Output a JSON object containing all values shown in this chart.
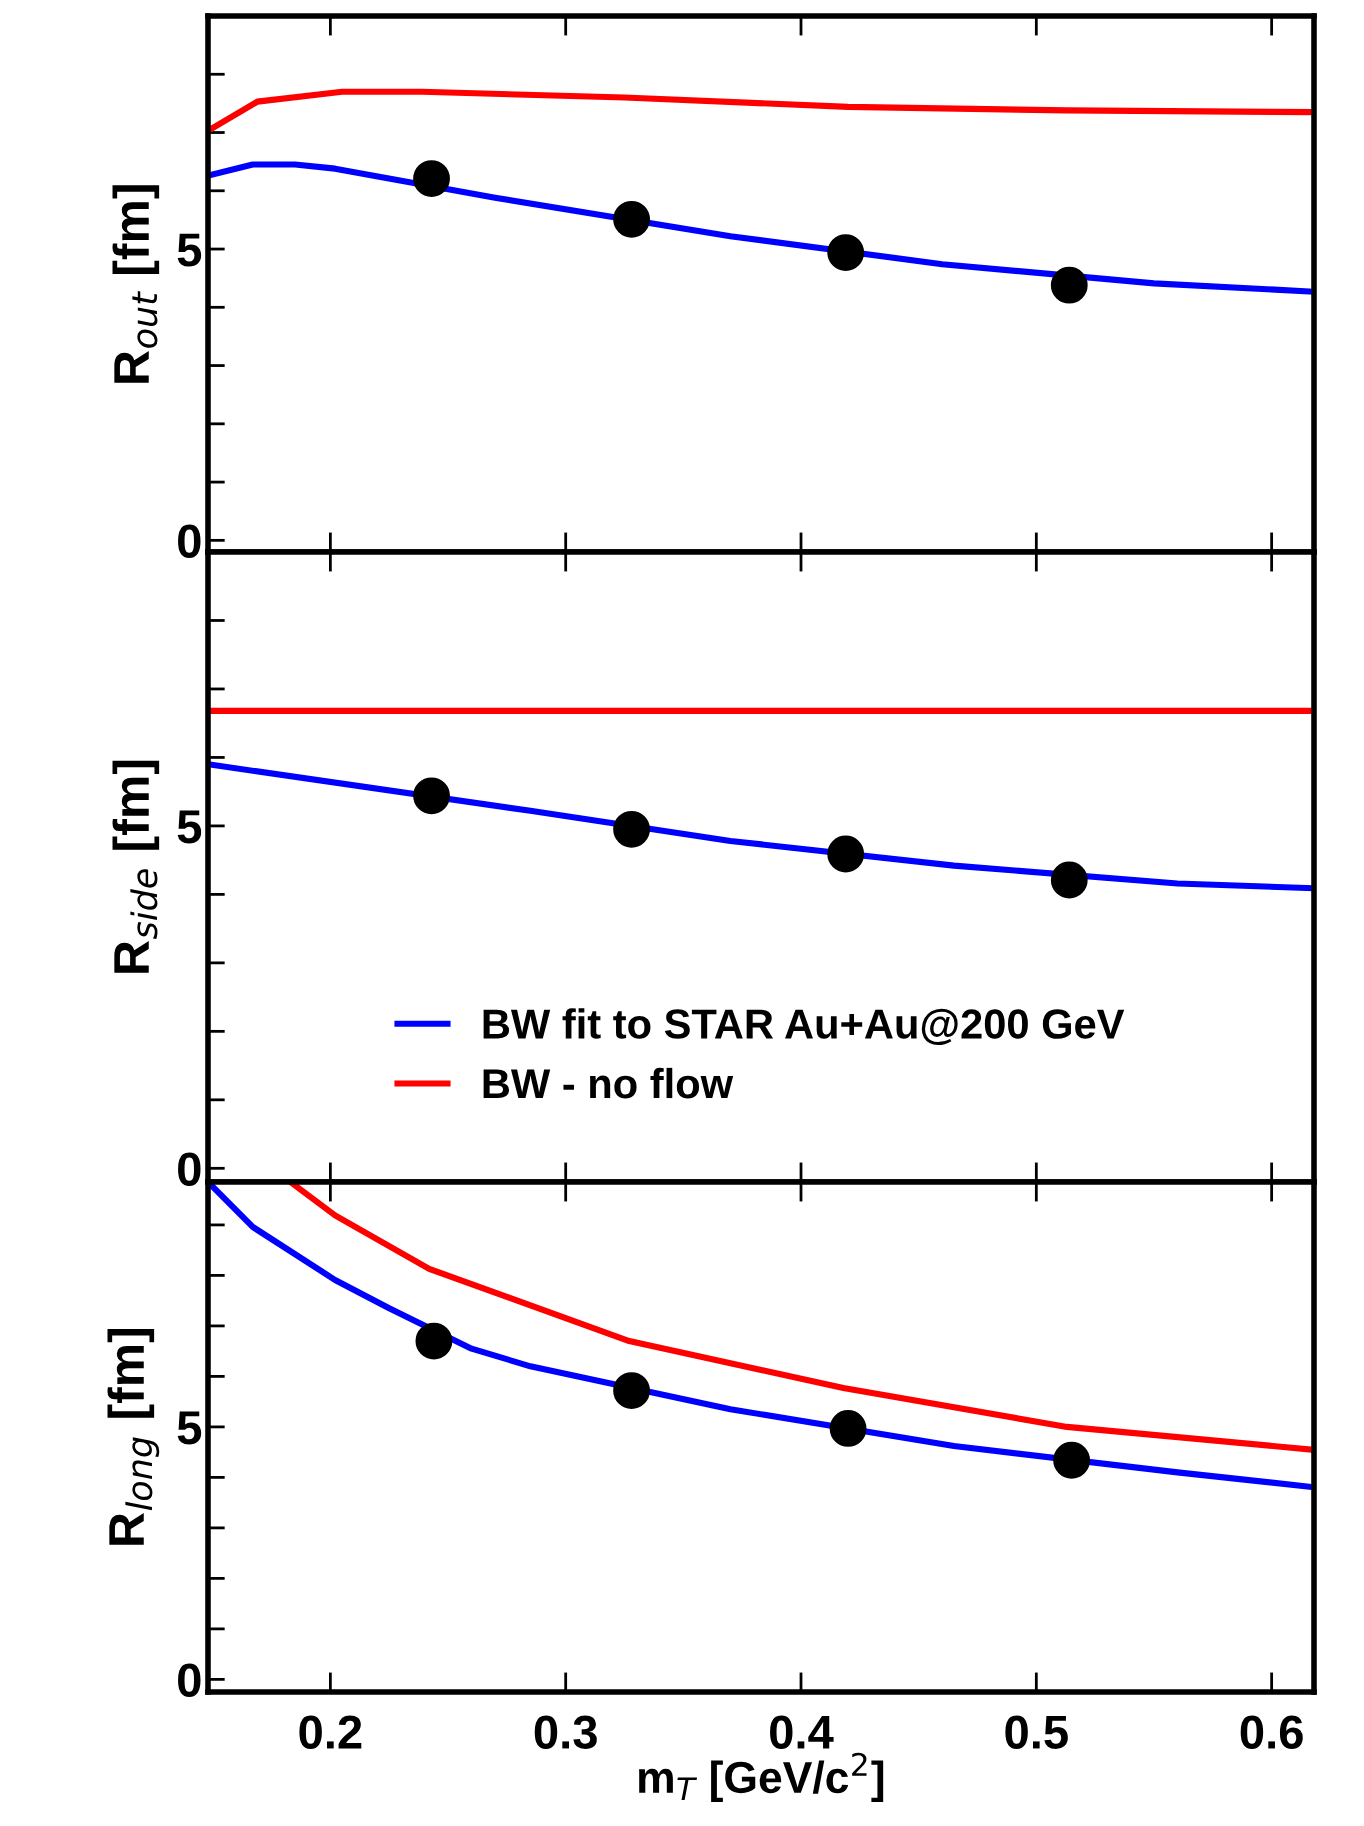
{
  "chart_data": [
    {
      "type": "line",
      "ylabel": "R$_{out}$ [fm]",
      "xlim": [
        0.148,
        0.618
      ],
      "ylim": [
        -0.2,
        9.0
      ],
      "xticks": [
        0.2,
        0.3,
        0.4,
        0.5,
        0.6
      ],
      "yticks": [
        0,
        {
          "value": 1,
          "label": null
        },
        {
          "value": 2,
          "label": null
        },
        {
          "value": 3,
          "label": null
        },
        {
          "value": 4,
          "label": null
        },
        5,
        {
          "value": 6,
          "label": null
        },
        {
          "value": 7,
          "label": null
        },
        {
          "value": 8,
          "label": null
        }
      ],
      "tick_labels": "y",
      "grid": false,
      "legend": false,
      "series": [
        {
          "color": "#0000ff",
          "x": [
            0.148,
            0.167,
            0.185,
            0.202,
            0.27,
            0.37,
            0.46,
            0.55,
            0.617
          ],
          "values": [
            6.26,
            6.45,
            6.45,
            6.38,
            5.88,
            5.22,
            4.74,
            4.41,
            4.27
          ]
        },
        {
          "color": "#ff0000",
          "x": [
            0.148,
            0.169,
            0.205,
            0.239,
            0.325,
            0.42,
            0.513,
            0.617
          ],
          "values": [
            7.03,
            7.53,
            7.7,
            7.7,
            7.6,
            7.44,
            7.38,
            7.35
          ]
        },
        {
          "type": "scatter",
          "color": "#000000",
          "marker": "circle",
          "x": [
            0.243,
            0.328,
            0.419,
            0.514
          ],
          "values": [
            6.21,
            5.51,
            4.94,
            4.38
          ]
        }
      ]
    },
    {
      "type": "line",
      "ylabel": "R$_{side}$ [fm]",
      "xlim": [
        0.148,
        0.618
      ],
      "ylim": [
        -0.2,
        9.0
      ],
      "xticks": [
        0.2,
        0.3,
        0.4,
        0.5,
        0.6
      ],
      "yticks": [
        0,
        {
          "value": 1,
          "label": null
        },
        {
          "value": 2,
          "label": null
        },
        {
          "value": 3,
          "label": null
        },
        {
          "value": 4,
          "label": null
        },
        5,
        {
          "value": 6,
          "label": null
        },
        {
          "value": 7,
          "label": null
        },
        {
          "value": 8,
          "label": null
        }
      ],
      "tick_labels": "y",
      "grid": false,
      "legend": "bottom",
      "series": [
        {
          "name": "BW fit to STAR Au+Au@200 GeV",
          "color": "#0000ff",
          "x": [
            0.148,
            0.285,
            0.37,
            0.465,
            0.56,
            0.617
          ],
          "values": [
            5.9,
            5.22,
            4.78,
            4.42,
            4.16,
            4.09
          ]
        },
        {
          "name": "BW - no flow",
          "color": "#ff0000",
          "x": [
            0.148,
            0.617
          ],
          "values": [
            6.68,
            6.68
          ]
        },
        {
          "type": "scatter",
          "color": "#000000",
          "marker": "circle",
          "x": [
            0.243,
            0.328,
            0.419,
            0.514
          ],
          "values": [
            5.44,
            4.95,
            4.59,
            4.21
          ]
        }
      ]
    },
    {
      "type": "line",
      "ylabel": "R$_{long}$ [fm]",
      "xlabel": "m$_{T}$ [GeV/c$^{2}$]",
      "xlim": [
        0.148,
        0.618
      ],
      "ylim": [
        -0.25,
        9.85
      ],
      "xticks": [
        0.2,
        0.3,
        0.4,
        0.5,
        0.6
      ],
      "yticks": [
        0,
        {
          "value": 1,
          "label": null
        },
        {
          "value": 2,
          "label": null
        },
        {
          "value": 3,
          "label": null
        },
        {
          "value": 4,
          "label": null
        },
        5,
        {
          "value": 6,
          "label": null
        },
        {
          "value": 7,
          "label": null
        },
        {
          "value": 8,
          "label": null
        },
        {
          "value": 9,
          "label": null
        }
      ],
      "grid": false,
      "legend": false,
      "series": [
        {
          "color": "#0000ff",
          "x": [
            0.148,
            0.167,
            0.202,
            0.225,
            0.26,
            0.285,
            0.37,
            0.465,
            0.56,
            0.617
          ],
          "values": [
            9.85,
            8.96,
            7.91,
            7.35,
            6.55,
            6.2,
            5.35,
            4.62,
            4.1,
            3.81
          ]
        },
        {
          "color": "#ff0000",
          "x": [
            0.183,
            0.202,
            0.242,
            0.327,
            0.418,
            0.513,
            0.617
          ],
          "values": [
            9.85,
            9.19,
            8.13,
            6.7,
            5.77,
            5.0,
            4.55
          ]
        },
        {
          "type": "scatter",
          "color": "#000000",
          "marker": "circle",
          "x": [
            0.244,
            0.328,
            0.42,
            0.515
          ],
          "values": [
            6.7,
            5.72,
            4.97,
            4.34
          ]
        }
      ]
    }
  ]
}
